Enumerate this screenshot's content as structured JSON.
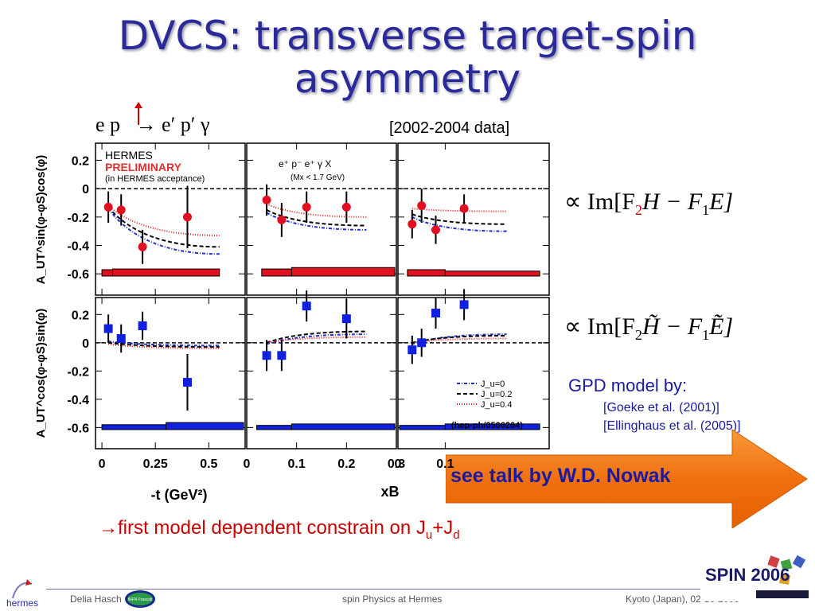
{
  "slide": {
    "title": "DVCS: transverse target-spin asymmetry",
    "reaction": "e p   → e′ p′ γ",
    "data_years": "[2002-2004 data]",
    "formula_top": {
      "prefix": "∝ Im[F",
      "sub1": "2",
      "mid": "H − F",
      "sub2": "1",
      "end": "E]"
    },
    "formula_bottom": {
      "prefix": "∝ Im[F",
      "sub1": "2",
      "mid": "H̃ − F",
      "sub2": "1",
      "end": "Ẽ]"
    },
    "gpd_label": "GPD model by:",
    "ref1": "[Goeke et al. (2001)]",
    "ref2": "[Ellinghaus et al. (2005)]",
    "talk": "see talk by W.D. Nowak",
    "conclusion": {
      "arrow": "→",
      "text": "first model dependent constrain on J",
      "sub_u": "u",
      "plus": "+J",
      "sub_d": "d"
    },
    "footer": {
      "author": "Delia Hasch",
      "center": "spin Physics at Hermes",
      "right": "Kyoto (Japan), 02-10-2006"
    },
    "logos": {
      "hermes": "hermes",
      "infn": "INFN Frascati",
      "spin": "SPIN 2006"
    }
  },
  "chart_data": {
    "type": "scatter",
    "panel_labels": {
      "hermes": "HERMES",
      "preliminary": "PRELIMINARY",
      "acceptance": "(in HERMES acceptance)",
      "process": "e⁺ p⁻  e⁺ γ  X",
      "mx_cut": "(Mx < 1.7 GeV)",
      "model_ref": "(hep-ph/0506264)"
    },
    "row_ylabels": [
      "A_UT^sin(φ-φS)cos(φ)",
      "A_UT^cos(φ-φS)sin(φ)"
    ],
    "xlabels": [
      "-t (GeV²)",
      "xB"
    ],
    "ylim": [
      -0.75,
      0.32
    ],
    "yticks": [
      0.2,
      0,
      -0.2,
      -0.4,
      -0.6
    ],
    "panels_x": [
      {
        "xlim": [
          -0.03,
          0.67
        ],
        "ticks": [
          0,
          0.25,
          0.5
        ],
        "tick_labels": [
          "0",
          "0.25",
          "0.5"
        ]
      },
      {
        "xlim": [
          0,
          0.3
        ],
        "ticks": [
          0,
          0.1,
          0.2,
          0.3
        ],
        "tick_labels": [
          "0",
          "0.1",
          "0.2",
          "0.3"
        ]
      },
      {
        "xlim": [
          0,
          0.32
        ],
        "ticks": [
          0,
          0.1
        ],
        "tick_labels": [
          "0",
          "0.1"
        ]
      }
    ],
    "legend": [
      "J_u=0",
      "J_u=0.2",
      "J_u=0.4"
    ],
    "rows": [
      {
        "color": "#e01020",
        "marker": "circle",
        "panels": [
          {
            "x": [
              0.03,
              0.09,
              0.19,
              0.4
            ],
            "y": [
              -0.13,
              -0.15,
              -0.41,
              -0.2
            ],
            "err": [
              0.11,
              0.11,
              0.12,
              0.22
            ],
            "models": {
              "x": [
                0.03,
                0.55
              ],
              "ju0": [
                -0.14,
                -0.46
              ],
              "ju02": [
                -0.13,
                -0.41
              ],
              "ju04": [
                -0.12,
                -0.33
              ]
            },
            "sys": [
              [
                0,
                0.05,
                0.045
              ],
              [
                0.05,
                0.55,
                0.05
              ]
            ]
          },
          {
            "x": [
              0.04,
              0.07,
              0.12,
              0.2
            ],
            "y": [
              -0.08,
              -0.22,
              -0.13,
              -0.13
            ],
            "err": [
              0.11,
              0.12,
              0.11,
              0.11
            ],
            "models": {
              "x": [
                0.04,
                0.24
              ],
              "ju0": [
                -0.17,
                -0.29
              ],
              "ju02": [
                -0.15,
                -0.26
              ],
              "ju04": [
                -0.11,
                -0.2
              ]
            },
            "sys": [
              [
                0.03,
                0.09,
                0.05
              ],
              [
                0.09,
                0.3,
                0.06
              ]
            ]
          },
          {
            "x": [
              0.03,
              0.05,
              0.08,
              0.14
            ],
            "y": [
              -0.25,
              -0.12,
              -0.29,
              -0.14
            ],
            "err": [
              0.1,
              0.12,
              0.1,
              0.1
            ],
            "models": {
              "x": [
                0.03,
                0.23
              ],
              "ju0": [
                -0.2,
                -0.3
              ],
              "ju02": [
                -0.18,
                -0.25
              ],
              "ju04": [
                -0.14,
                -0.16
              ]
            },
            "sys": [
              [
                0.02,
                0.1,
                0.045
              ],
              [
                0.1,
                0.3,
                0.035
              ]
            ]
          }
        ]
      },
      {
        "color": "#1020e0",
        "marker": "square",
        "panels": [
          {
            "x": [
              0.03,
              0.09,
              0.19,
              0.4
            ],
            "y": [
              0.1,
              0.03,
              0.12,
              -0.28
            ],
            "err": [
              0.1,
              0.1,
              0.1,
              0.2
            ],
            "models": {
              "x": [
                0.03,
                0.55
              ],
              "ju0": [
                0.01,
                -0.02
              ],
              "ju02": [
                0.0,
                -0.03
              ],
              "ju04": [
                -0.01,
                -0.04
              ]
            },
            "sys": [
              [
                0,
                0.3,
                0.035
              ],
              [
                0.3,
                0.67,
                0.05
              ]
            ]
          },
          {
            "x": [
              0.04,
              0.07,
              0.12,
              0.2
            ],
            "y": [
              -0.09,
              -0.09,
              0.26,
              0.17
            ],
            "err": [
              0.11,
              0.11,
              0.11,
              0.14
            ],
            "models": {
              "x": [
                0.04,
                0.24
              ],
              "ju0": [
                -0.01,
                0.06
              ],
              "ju02": [
                0.0,
                0.08
              ],
              "ju04": [
                0.0,
                0.04
              ]
            },
            "sys": [
              [
                0.02,
                0.09,
                0.03
              ],
              [
                0.09,
                0.3,
                0.04
              ]
            ]
          },
          {
            "x": [
              0.03,
              0.05,
              0.08,
              0.14
            ],
            "y": [
              -0.05,
              0.0,
              0.21,
              0.27
            ],
            "err": [
              0.1,
              0.1,
              0.11,
              0.11
            ],
            "models": {
              "x": [
                0.03,
                0.23
              ],
              "ju0": [
                -0.01,
                0.06
              ],
              "ju02": [
                0.0,
                0.05
              ],
              "ju04": [
                0.0,
                0.03
              ]
            },
            "sys": [
              [
                0.0,
                0.1,
                0.03
              ],
              [
                0.1,
                0.3,
                0.04
              ]
            ]
          }
        ]
      }
    ]
  }
}
